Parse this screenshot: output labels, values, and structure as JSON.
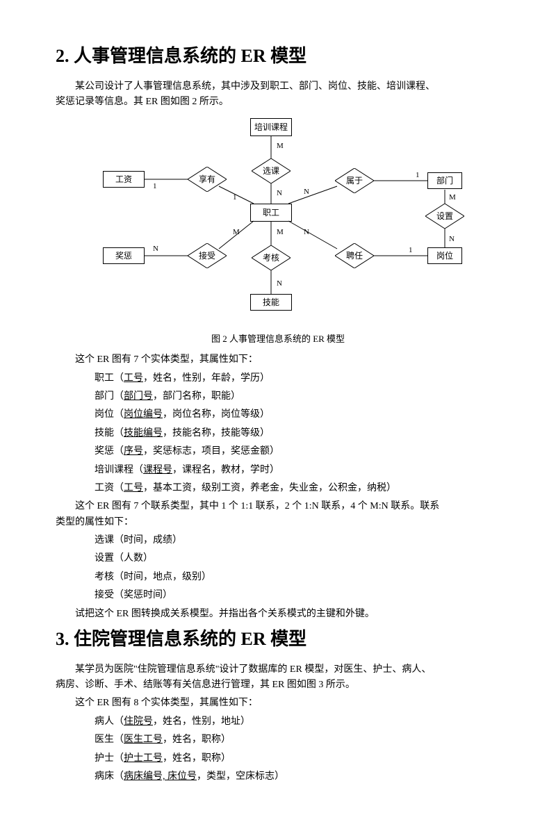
{
  "section2": {
    "heading": "2.  人事管理信息系统的 ER 模型",
    "intro1": "某公司设计了人事管理信息系统，其中涉及到职工、部门、岗位、技能、培训课程、",
    "intro2": "奖惩记录等信息。其 ER 图如图 2 所示。",
    "caption": "图 2  人事管理信息系统的 ER 模型",
    "entities_intro": "这个 ER 图有 7 个实体类型，其属性如下：",
    "entities": [
      {
        "pre": "职工（",
        "key": "工号",
        "rest": "，姓名，性别，年龄，学历）"
      },
      {
        "pre": "部门（",
        "key": "部门号",
        "rest": "，部门名称，职能）"
      },
      {
        "pre": "岗位（",
        "key": "岗位编号",
        "rest": "，岗位名称，岗位等级）"
      },
      {
        "pre": "技能（",
        "key": "技能编号",
        "rest": "，技能名称，技能等级）"
      },
      {
        "pre": "奖惩（",
        "key": "序号",
        "rest": "，奖惩标志，项目，奖惩金额）"
      },
      {
        "pre": "培训课程（",
        "key": "课程号",
        "rest": "，课程名，教材，学时）"
      },
      {
        "pre": "工资（",
        "key": "工号",
        "rest": "，基本工资，级别工资，养老金，失业金，公积金，纳税）"
      }
    ],
    "rel_intro1": "这个 ER 图有 7 个联系类型，其中 1 个 1:1 联系，2 个 1:N 联系，4 个 M:N 联系。联系",
    "rel_intro2": "类型的属性如下：",
    "relations": [
      "选课（时间，成绩）",
      "设置（人数）",
      "考核（时间，地点，级别）",
      "接受（奖惩时间）"
    ],
    "task": "试把这个 ER 图转换成关系模型。并指出各个关系模式的主键和外键。"
  },
  "diagram": {
    "entities": {
      "course": "培训课程",
      "salary": "工资",
      "employee": "职工",
      "dept": "部门",
      "reward": "奖惩",
      "post": "岗位",
      "skill": "技能"
    },
    "relations": {
      "select": "选课",
      "have": "享有",
      "belong": "属于",
      "setup": "设置",
      "accept": "接受",
      "assess": "考核",
      "hire": "聘任"
    },
    "card": {
      "one": "1",
      "m": "M",
      "n": "N"
    },
    "colors": {
      "bg": "#ffffff",
      "line": "#000000"
    }
  },
  "section3": {
    "heading": "3.  住院管理信息系统的 ER 模型",
    "intro1": "某学员为医院\"住院管理信息系统\"设计了数据库的 ER 模型，对医生、护士、病人、",
    "intro2": "病房、诊断、手术、结账等有关信息进行管理，其 ER 图如图 3 所示。",
    "entities_intro": "这个 ER 图有 8 个实体类型，其属性如下：",
    "entities": [
      {
        "pre": "病人（",
        "key": "住院号",
        "rest": "，姓名，性别，地址）"
      },
      {
        "pre": "医生（",
        "key": "医生工号",
        "rest": "，姓名，职称）"
      },
      {
        "pre": "护士（",
        "key": "护士工号",
        "rest": "，姓名，职称）"
      },
      {
        "pre": "病床（",
        "key": "病床编号, 床位号",
        "rest": "，类型，空床标志）"
      }
    ]
  }
}
